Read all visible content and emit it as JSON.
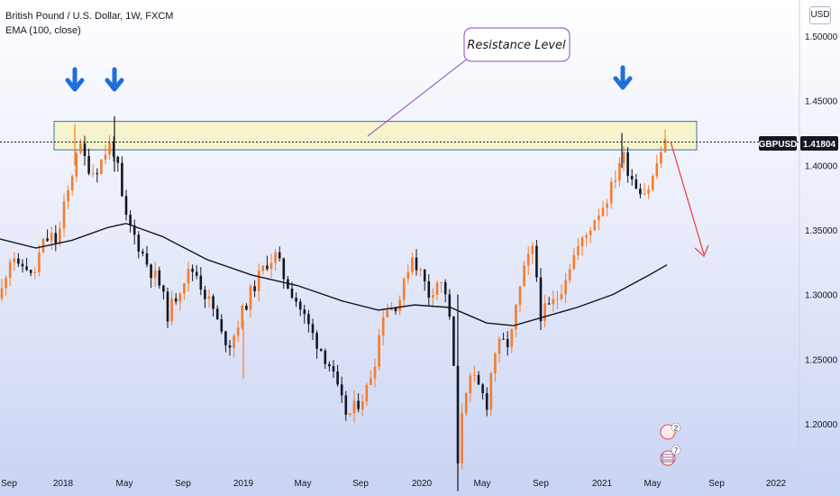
{
  "legend": {
    "title": "British Pound / U.S. Dollar, 1W, FXCM",
    "indicator": "EMA (100, close)"
  },
  "currency_button": "USD",
  "price_tag": {
    "symbol": "GBPUSD",
    "price": "1.41804"
  },
  "annotation": {
    "text": "Resistance Level"
  },
  "events": {
    "badge_1": "2",
    "badge_2": "7"
  },
  "colors": {
    "up": "#f57c2c",
    "down": "#131722",
    "ema": "#131722",
    "arrow_blue": "#1e6fdc",
    "arrow_red": "#e8474a",
    "zone_fill": "#f7f3c4",
    "zone_border": "#3a6fb0",
    "callout_border": "#8e44c4"
  },
  "icons": [
    "arrow-down-icon",
    "flag-icon"
  ],
  "chart_data": {
    "type": "candlestick",
    "title": "British Pound / U.S. Dollar, 1W, FXCM",
    "y_ticks": [
      "1.50000",
      "1.45000",
      "1.40000",
      "1.35000",
      "1.30000",
      "1.25000",
      "1.20000"
    ],
    "y_range": [
      1.155,
      1.515
    ],
    "x_ticks": [
      "Sep",
      "2018",
      "May",
      "Sep",
      "2019",
      "May",
      "Sep",
      "2020",
      "May",
      "Sep",
      "2021",
      "May",
      "Sep",
      "2022"
    ],
    "current_price": 1.41804,
    "resistance_zone": [
      1.412,
      1.434
    ],
    "price_path": [
      [
        0,
        1.297
      ],
      [
        8,
        1.322
      ],
      [
        14,
        1.335
      ],
      [
        20,
        1.318
      ],
      [
        28,
        1.325
      ],
      [
        36,
        1.31
      ],
      [
        46,
        1.338
      ],
      [
        56,
        1.345
      ],
      [
        64,
        1.34
      ],
      [
        70,
        1.365
      ],
      [
        78,
        1.385
      ],
      [
        86,
        1.418
      ],
      [
        94,
        1.405
      ],
      [
        102,
        1.395
      ],
      [
        110,
        1.4
      ],
      [
        118,
        1.412
      ],
      [
        124,
        1.418
      ],
      [
        130,
        1.4
      ],
      [
        138,
        1.36
      ],
      [
        146,
        1.35
      ],
      [
        156,
        1.335
      ],
      [
        166,
        1.32
      ],
      [
        176,
        1.31
      ],
      [
        186,
        1.285
      ],
      [
        196,
        1.3
      ],
      [
        206,
        1.315
      ],
      [
        216,
        1.32
      ],
      [
        226,
        1.302
      ],
      [
        236,
        1.29
      ],
      [
        246,
        1.268
      ],
      [
        256,
        1.262
      ],
      [
        266,
        1.282
      ],
      [
        276,
        1.298
      ],
      [
        286,
        1.312
      ],
      [
        296,
        1.325
      ],
      [
        306,
        1.33
      ],
      [
        316,
        1.312
      ],
      [
        326,
        1.3
      ],
      [
        336,
        1.285
      ],
      [
        346,
        1.27
      ],
      [
        356,
        1.258
      ],
      [
        366,
        1.245
      ],
      [
        376,
        1.222
      ],
      [
        386,
        1.205
      ],
      [
        396,
        1.215
      ],
      [
        406,
        1.225
      ],
      [
        416,
        1.25
      ],
      [
        426,
        1.29
      ],
      [
        436,
        1.29
      ],
      [
        446,
        1.3
      ],
      [
        456,
        1.332
      ],
      [
        466,
        1.318
      ],
      [
        476,
        1.3
      ],
      [
        486,
        1.312
      ],
      [
        496,
        1.3
      ],
      [
        504,
        1.24
      ],
      [
        508,
        1.165
      ],
      [
        514,
        1.225
      ],
      [
        524,
        1.235
      ],
      [
        534,
        1.225
      ],
      [
        540,
        1.215
      ],
      [
        548,
        1.255
      ],
      [
        556,
        1.262
      ],
      [
        566,
        1.262
      ],
      [
        574,
        1.295
      ],
      [
        584,
        1.325
      ],
      [
        592,
        1.335
      ],
      [
        600,
        1.285
      ],
      [
        610,
        1.29
      ],
      [
        620,
        1.3
      ],
      [
        630,
        1.32
      ],
      [
        640,
        1.335
      ],
      [
        650,
        1.345
      ],
      [
        660,
        1.36
      ],
      [
        670,
        1.37
      ],
      [
        680,
        1.385
      ],
      [
        690,
        1.41
      ],
      [
        698,
        1.395
      ],
      [
        706,
        1.385
      ],
      [
        716,
        1.38
      ],
      [
        722,
        1.385
      ],
      [
        728,
        1.4
      ],
      [
        734,
        1.412
      ],
      [
        740,
        1.418
      ]
    ],
    "ema_100": [
      [
        0,
        1.343
      ],
      [
        40,
        1.336
      ],
      [
        80,
        1.342
      ],
      [
        120,
        1.352
      ],
      [
        140,
        1.355
      ],
      [
        180,
        1.345
      ],
      [
        230,
        1.327
      ],
      [
        280,
        1.315
      ],
      [
        330,
        1.307
      ],
      [
        380,
        1.295
      ],
      [
        420,
        1.288
      ],
      [
        460,
        1.292
      ],
      [
        500,
        1.29
      ],
      [
        540,
        1.278
      ],
      [
        570,
        1.276
      ],
      [
        600,
        1.282
      ],
      [
        640,
        1.29
      ],
      [
        680,
        1.3
      ],
      [
        720,
        1.315
      ],
      [
        740,
        1.323
      ]
    ]
  }
}
